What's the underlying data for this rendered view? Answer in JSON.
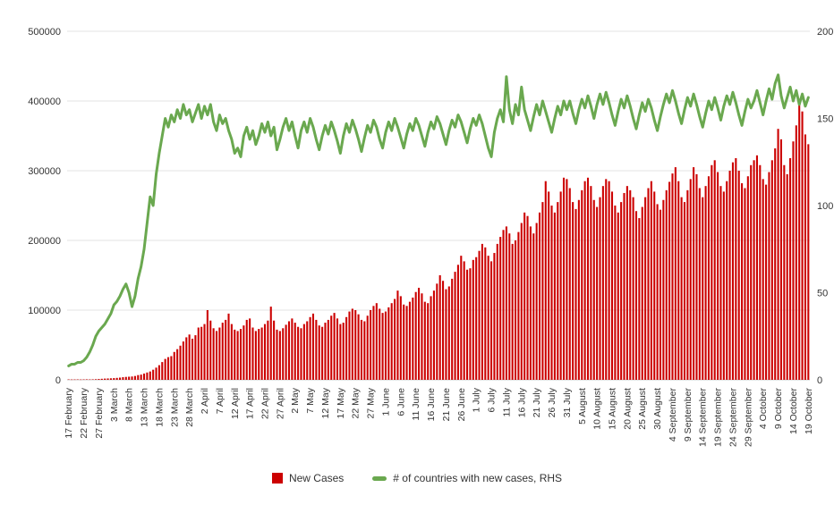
{
  "legend": {
    "new_cases": "New Cases",
    "countries": "# of countries with new cases, RHS"
  },
  "colors": {
    "bar": "#cc0000",
    "line": "#6aa84f",
    "grid": "#e3e3e3",
    "baseline": "#cccccc",
    "axis_text": "#333333",
    "background": "#ffffff"
  },
  "chart_data": {
    "type": "bar",
    "title": "",
    "grid": "horizontal",
    "legend_position": "bottom",
    "tick_every_n_days": 5,
    "x_tick_labels": [
      "17 February",
      "22 February",
      "27 February",
      "3 March",
      "8 March",
      "13 March",
      "18 March",
      "23 March",
      "28 March",
      "2 April",
      "7 April",
      "12 April",
      "17 April",
      "22 April",
      "27 April",
      "2 May",
      "7 May",
      "12 May",
      "17 May",
      "22 May",
      "27 May",
      "1 June",
      "6 June",
      "11 June",
      "16 June",
      "21 June",
      "26 June",
      "1 July",
      "6 July",
      "11 July",
      "16 July",
      "21 July",
      "26 July",
      "31 July",
      "5 August",
      "10 August",
      "15 August",
      "20 August",
      "25 August",
      "30 August",
      "4 September",
      "9 September",
      "14 September",
      "19 September",
      "24 September",
      "29 September",
      "4 October",
      "9 October",
      "14 October",
      "19 October"
    ],
    "left_axis": {
      "min": 0,
      "max": 500000,
      "ticks": [
        0,
        100000,
        200000,
        300000,
        400000,
        500000
      ]
    },
    "right_axis": {
      "min": 0,
      "max": 200,
      "ticks": [
        0,
        50,
        100,
        150,
        200
      ]
    },
    "series": [
      {
        "name": "New Cases",
        "type": "bar",
        "axis": "left",
        "color": "#cc0000",
        "values": [
          600,
          500,
          550,
          600,
          500,
          600,
          700,
          600,
          700,
          900,
          1200,
          1500,
          1800,
          2000,
          2200,
          2500,
          2800,
          3200,
          3800,
          4200,
          4500,
          4800,
          5500,
          6800,
          7500,
          9000,
          10500,
          12000,
          14500,
          17500,
          21000,
          25500,
          30000,
          32500,
          34000,
          40000,
          44000,
          49000,
          55000,
          61000,
          65000,
          59000,
          64000,
          75000,
          76000,
          80000,
          100000,
          85000,
          74000,
          70000,
          75000,
          82000,
          86000,
          95000,
          80000,
          72000,
          70000,
          73000,
          78000,
          86000,
          88000,
          75000,
          70000,
          73000,
          75000,
          80000,
          85000,
          105000,
          85000,
          72000,
          70000,
          74000,
          79000,
          84000,
          88000,
          82000,
          76000,
          74000,
          80000,
          84000,
          90000,
          95000,
          86000,
          78000,
          76000,
          82000,
          86000,
          92000,
          96000,
          88000,
          80000,
          82000,
          90000,
          98000,
          102000,
          100000,
          94000,
          86000,
          84000,
          92000,
          100000,
          106000,
          110000,
          102000,
          96000,
          98000,
          104000,
          110000,
          116000,
          128000,
          120000,
          108000,
          106000,
          112000,
          118000,
          126000,
          132000,
          124000,
          112000,
          110000,
          120000,
          128000,
          138000,
          150000,
          142000,
          130000,
          134000,
          145000,
          155000,
          165000,
          178000,
          170000,
          158000,
          160000,
          172000,
          176000,
          185000,
          195000,
          190000,
          178000,
          170000,
          182000,
          195000,
          205000,
          215000,
          220000,
          210000,
          195000,
          200000,
          212000,
          225000,
          240000,
          235000,
          220000,
          210000,
          225000,
          240000,
          255000,
          285000,
          270000,
          250000,
          240000,
          255000,
          270000,
          290000,
          288000,
          275000,
          255000,
          245000,
          258000,
          272000,
          285000,
          290000,
          278000,
          258000,
          248000,
          262000,
          278000,
          288000,
          285000,
          270000,
          250000,
          240000,
          255000,
          268000,
          278000,
          272000,
          262000,
          242000,
          232000,
          248000,
          262000,
          275000,
          285000,
          270000,
          252000,
          244000,
          258000,
          272000,
          284000,
          296000,
          305000,
          285000,
          262000,
          255000,
          272000,
          288000,
          305000,
          295000,
          275000,
          262000,
          278000,
          292000,
          308000,
          315000,
          298000,
          278000,
          270000,
          285000,
          300000,
          312000,
          318000,
          300000,
          282000,
          275000,
          292000,
          308000,
          315000,
          322000,
          308000,
          288000,
          280000,
          298000,
          315000,
          332000,
          360000,
          345000,
          308000,
          295000,
          318000,
          342000,
          365000,
          400000,
          385000,
          352000,
          338000
        ]
      },
      {
        "name": "# of countries with new cases, RHS",
        "type": "line",
        "axis": "right",
        "color": "#6aa84f",
        "values": [
          8,
          9,
          9,
          10,
          10,
          11,
          13,
          16,
          20,
          25,
          28,
          30,
          32,
          35,
          38,
          43,
          45,
          48,
          52,
          55,
          50,
          42,
          48,
          58,
          65,
          75,
          90,
          105,
          100,
          118,
          130,
          140,
          150,
          145,
          152,
          148,
          155,
          150,
          158,
          152,
          155,
          148,
          153,
          158,
          150,
          157,
          152,
          158,
          148,
          143,
          152,
          147,
          150,
          143,
          138,
          130,
          133,
          128,
          140,
          145,
          138,
          143,
          135,
          140,
          147,
          142,
          148,
          140,
          145,
          132,
          138,
          145,
          150,
          143,
          148,
          140,
          133,
          143,
          148,
          142,
          150,
          145,
          138,
          132,
          140,
          146,
          141,
          148,
          143,
          137,
          130,
          140,
          147,
          142,
          149,
          144,
          138,
          131,
          139,
          146,
          142,
          149,
          145,
          138,
          133,
          142,
          148,
          143,
          150,
          145,
          139,
          133,
          141,
          147,
          143,
          150,
          146,
          140,
          134,
          142,
          148,
          144,
          151,
          147,
          141,
          135,
          143,
          149,
          145,
          152,
          148,
          142,
          136,
          144,
          150,
          146,
          152,
          147,
          140,
          133,
          128,
          142,
          150,
          155,
          148,
          174,
          155,
          147,
          158,
          152,
          168,
          155,
          149,
          143,
          151,
          158,
          152,
          160,
          154,
          148,
          142,
          150,
          157,
          152,
          160,
          155,
          160,
          153,
          147,
          155,
          161,
          156,
          163,
          157,
          150,
          158,
          164,
          158,
          165,
          159,
          152,
          146,
          154,
          161,
          156,
          163,
          157,
          150,
          144,
          152,
          159,
          154,
          161,
          156,
          149,
          143,
          151,
          158,
          164,
          159,
          166,
          160,
          153,
          147,
          155,
          162,
          157,
          164,
          158,
          151,
          145,
          153,
          160,
          155,
          162,
          156,
          149,
          157,
          163,
          158,
          165,
          159,
          152,
          146,
          154,
          161,
          156,
          160,
          166,
          159,
          152,
          160,
          167,
          161,
          170,
          175,
          163,
          156,
          162,
          168,
          160,
          166,
          158,
          164,
          157,
          162
        ]
      }
    ]
  }
}
